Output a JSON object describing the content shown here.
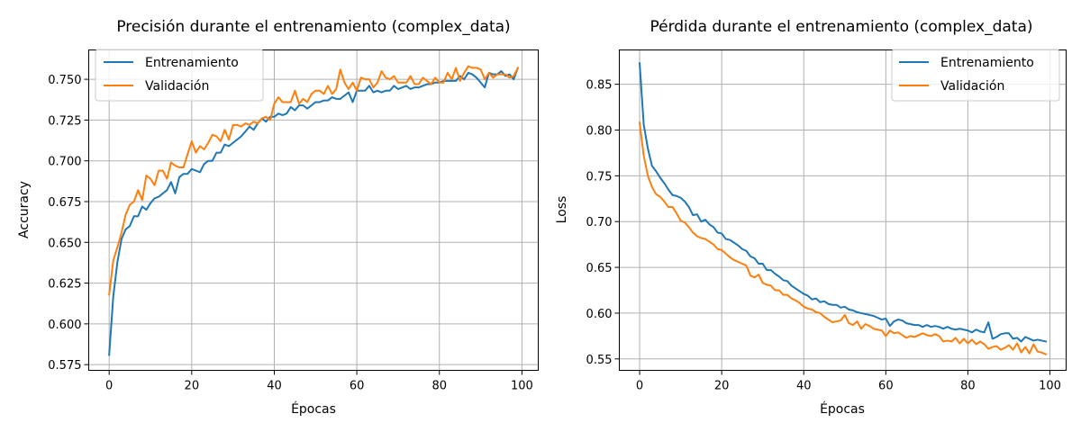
{
  "chart_data": [
    {
      "type": "line",
      "title": "Precisión durante el entrenamiento (complex_data)",
      "xlabel": "Épocas",
      "ylabel": "Accuracy",
      "xlim": [
        -4.95,
        103.95
      ],
      "ylim": [
        0.5715,
        0.768
      ],
      "xticks": [
        0,
        20,
        40,
        60,
        80,
        100
      ],
      "yticks": [
        0.575,
        0.6,
        0.625,
        0.65,
        0.675,
        0.7,
        0.725,
        0.75
      ],
      "ytick_labels": [
        "0.575",
        "0.600",
        "0.625",
        "0.650",
        "0.675",
        "0.700",
        "0.725",
        "0.750"
      ],
      "grid": true,
      "legend_position": "upper-left",
      "series": [
        {
          "name": "Entrenamiento",
          "color": "#1f77b4",
          "values": [
            0.581,
            0.617,
            0.638,
            0.652,
            0.658,
            0.66,
            0.666,
            0.666,
            0.672,
            0.67,
            0.674,
            0.677,
            0.678,
            0.68,
            0.682,
            0.687,
            0.68,
            0.69,
            0.692,
            0.692,
            0.695,
            0.694,
            0.693,
            0.698,
            0.7,
            0.7,
            0.705,
            0.705,
            0.71,
            0.709,
            0.711,
            0.713,
            0.715,
            0.718,
            0.721,
            0.719,
            0.723,
            0.726,
            0.724,
            0.727,
            0.727,
            0.729,
            0.728,
            0.729,
            0.733,
            0.731,
            0.734,
            0.734,
            0.732,
            0.734,
            0.736,
            0.736,
            0.737,
            0.737,
            0.739,
            0.738,
            0.738,
            0.74,
            0.742,
            0.736,
            0.743,
            0.743,
            0.743,
            0.746,
            0.742,
            0.743,
            0.742,
            0.743,
            0.743,
            0.746,
            0.744,
            0.745,
            0.746,
            0.744,
            0.745,
            0.745,
            0.746,
            0.747,
            0.747,
            0.748,
            0.748,
            0.749,
            0.749,
            0.749,
            0.749,
            0.752,
            0.75,
            0.754,
            0.753,
            0.751,
            0.748,
            0.745,
            0.754,
            0.753,
            0.753,
            0.755,
            0.752,
            0.753,
            0.75,
            0.757
          ]
        },
        {
          "name": "Validación",
          "color": "#ff7f0e",
          "values": [
            0.618,
            0.639,
            0.647,
            0.656,
            0.667,
            0.673,
            0.675,
            0.682,
            0.676,
            0.691,
            0.689,
            0.685,
            0.694,
            0.694,
            0.689,
            0.699,
            0.697,
            0.696,
            0.696,
            0.704,
            0.712,
            0.705,
            0.709,
            0.707,
            0.711,
            0.716,
            0.715,
            0.712,
            0.719,
            0.713,
            0.722,
            0.722,
            0.721,
            0.723,
            0.722,
            0.724,
            0.723,
            0.726,
            0.727,
            0.725,
            0.735,
            0.739,
            0.736,
            0.736,
            0.736,
            0.743,
            0.735,
            0.738,
            0.736,
            0.741,
            0.743,
            0.743,
            0.741,
            0.746,
            0.741,
            0.744,
            0.756,
            0.748,
            0.744,
            0.748,
            0.743,
            0.751,
            0.75,
            0.75,
            0.745,
            0.748,
            0.755,
            0.751,
            0.75,
            0.752,
            0.748,
            0.748,
            0.748,
            0.752,
            0.747,
            0.747,
            0.751,
            0.749,
            0.747,
            0.751,
            0.748,
            0.748,
            0.754,
            0.75,
            0.757,
            0.749,
            0.754,
            0.758,
            0.757,
            0.757,
            0.756,
            0.75,
            0.754,
            0.751,
            0.753,
            0.753,
            0.753,
            0.751,
            0.752,
            0.757
          ]
        }
      ]
    },
    {
      "type": "line",
      "title": "Pérdida durante el entrenamiento (complex_data)",
      "xlabel": "Épocas",
      "ylabel": "Loss",
      "xlim": [
        -4.95,
        103.95
      ],
      "ylim": [
        0.5375,
        0.8875
      ],
      "xticks": [
        0,
        20,
        40,
        60,
        80,
        100
      ],
      "yticks": [
        0.55,
        0.6,
        0.65,
        0.7,
        0.75,
        0.8,
        0.85
      ],
      "ytick_labels": [
        "0.55",
        "0.60",
        "0.65",
        "0.70",
        "0.75",
        "0.80",
        "0.85"
      ],
      "grid": true,
      "legend_position": "upper-right",
      "series": [
        {
          "name": "Entrenamiento",
          "color": "#1f77b4",
          "values": [
            0.873,
            0.806,
            0.78,
            0.761,
            0.755,
            0.748,
            0.742,
            0.735,
            0.729,
            0.728,
            0.726,
            0.722,
            0.716,
            0.707,
            0.708,
            0.7,
            0.702,
            0.697,
            0.694,
            0.688,
            0.687,
            0.681,
            0.68,
            0.677,
            0.674,
            0.67,
            0.668,
            0.662,
            0.66,
            0.654,
            0.654,
            0.647,
            0.647,
            0.643,
            0.64,
            0.636,
            0.635,
            0.63,
            0.627,
            0.624,
            0.621,
            0.619,
            0.615,
            0.616,
            0.612,
            0.613,
            0.61,
            0.609,
            0.609,
            0.606,
            0.607,
            0.604,
            0.603,
            0.601,
            0.6,
            0.599,
            0.598,
            0.597,
            0.595,
            0.593,
            0.594,
            0.586,
            0.591,
            0.593,
            0.592,
            0.589,
            0.588,
            0.587,
            0.587,
            0.585,
            0.587,
            0.585,
            0.586,
            0.585,
            0.583,
            0.585,
            0.583,
            0.582,
            0.583,
            0.582,
            0.581,
            0.579,
            0.582,
            0.58,
            0.579,
            0.59,
            0.572,
            0.574,
            0.577,
            0.578,
            0.578,
            0.572,
            0.573,
            0.569,
            0.574,
            0.572,
            0.57,
            0.571,
            0.57,
            0.569
          ]
        },
        {
          "name": "Validación",
          "color": "#ff7f0e",
          "values": [
            0.808,
            0.772,
            0.75,
            0.738,
            0.73,
            0.727,
            0.722,
            0.716,
            0.716,
            0.709,
            0.701,
            0.699,
            0.694,
            0.688,
            0.684,
            0.682,
            0.681,
            0.678,
            0.675,
            0.67,
            0.669,
            0.665,
            0.661,
            0.658,
            0.656,
            0.654,
            0.652,
            0.641,
            0.639,
            0.642,
            0.633,
            0.631,
            0.63,
            0.625,
            0.625,
            0.62,
            0.62,
            0.616,
            0.614,
            0.611,
            0.607,
            0.605,
            0.604,
            0.601,
            0.6,
            0.596,
            0.593,
            0.59,
            0.591,
            0.592,
            0.598,
            0.589,
            0.587,
            0.591,
            0.583,
            0.588,
            0.586,
            0.583,
            0.582,
            0.581,
            0.575,
            0.581,
            0.578,
            0.579,
            0.576,
            0.573,
            0.575,
            0.574,
            0.576,
            0.578,
            0.576,
            0.575,
            0.577,
            0.575,
            0.569,
            0.57,
            0.569,
            0.573,
            0.567,
            0.572,
            0.567,
            0.571,
            0.566,
            0.569,
            0.566,
            0.561,
            0.563,
            0.564,
            0.56,
            0.562,
            0.565,
            0.56,
            0.567,
            0.557,
            0.563,
            0.556,
            0.566,
            0.558,
            0.557,
            0.555
          ]
        }
      ]
    }
  ]
}
